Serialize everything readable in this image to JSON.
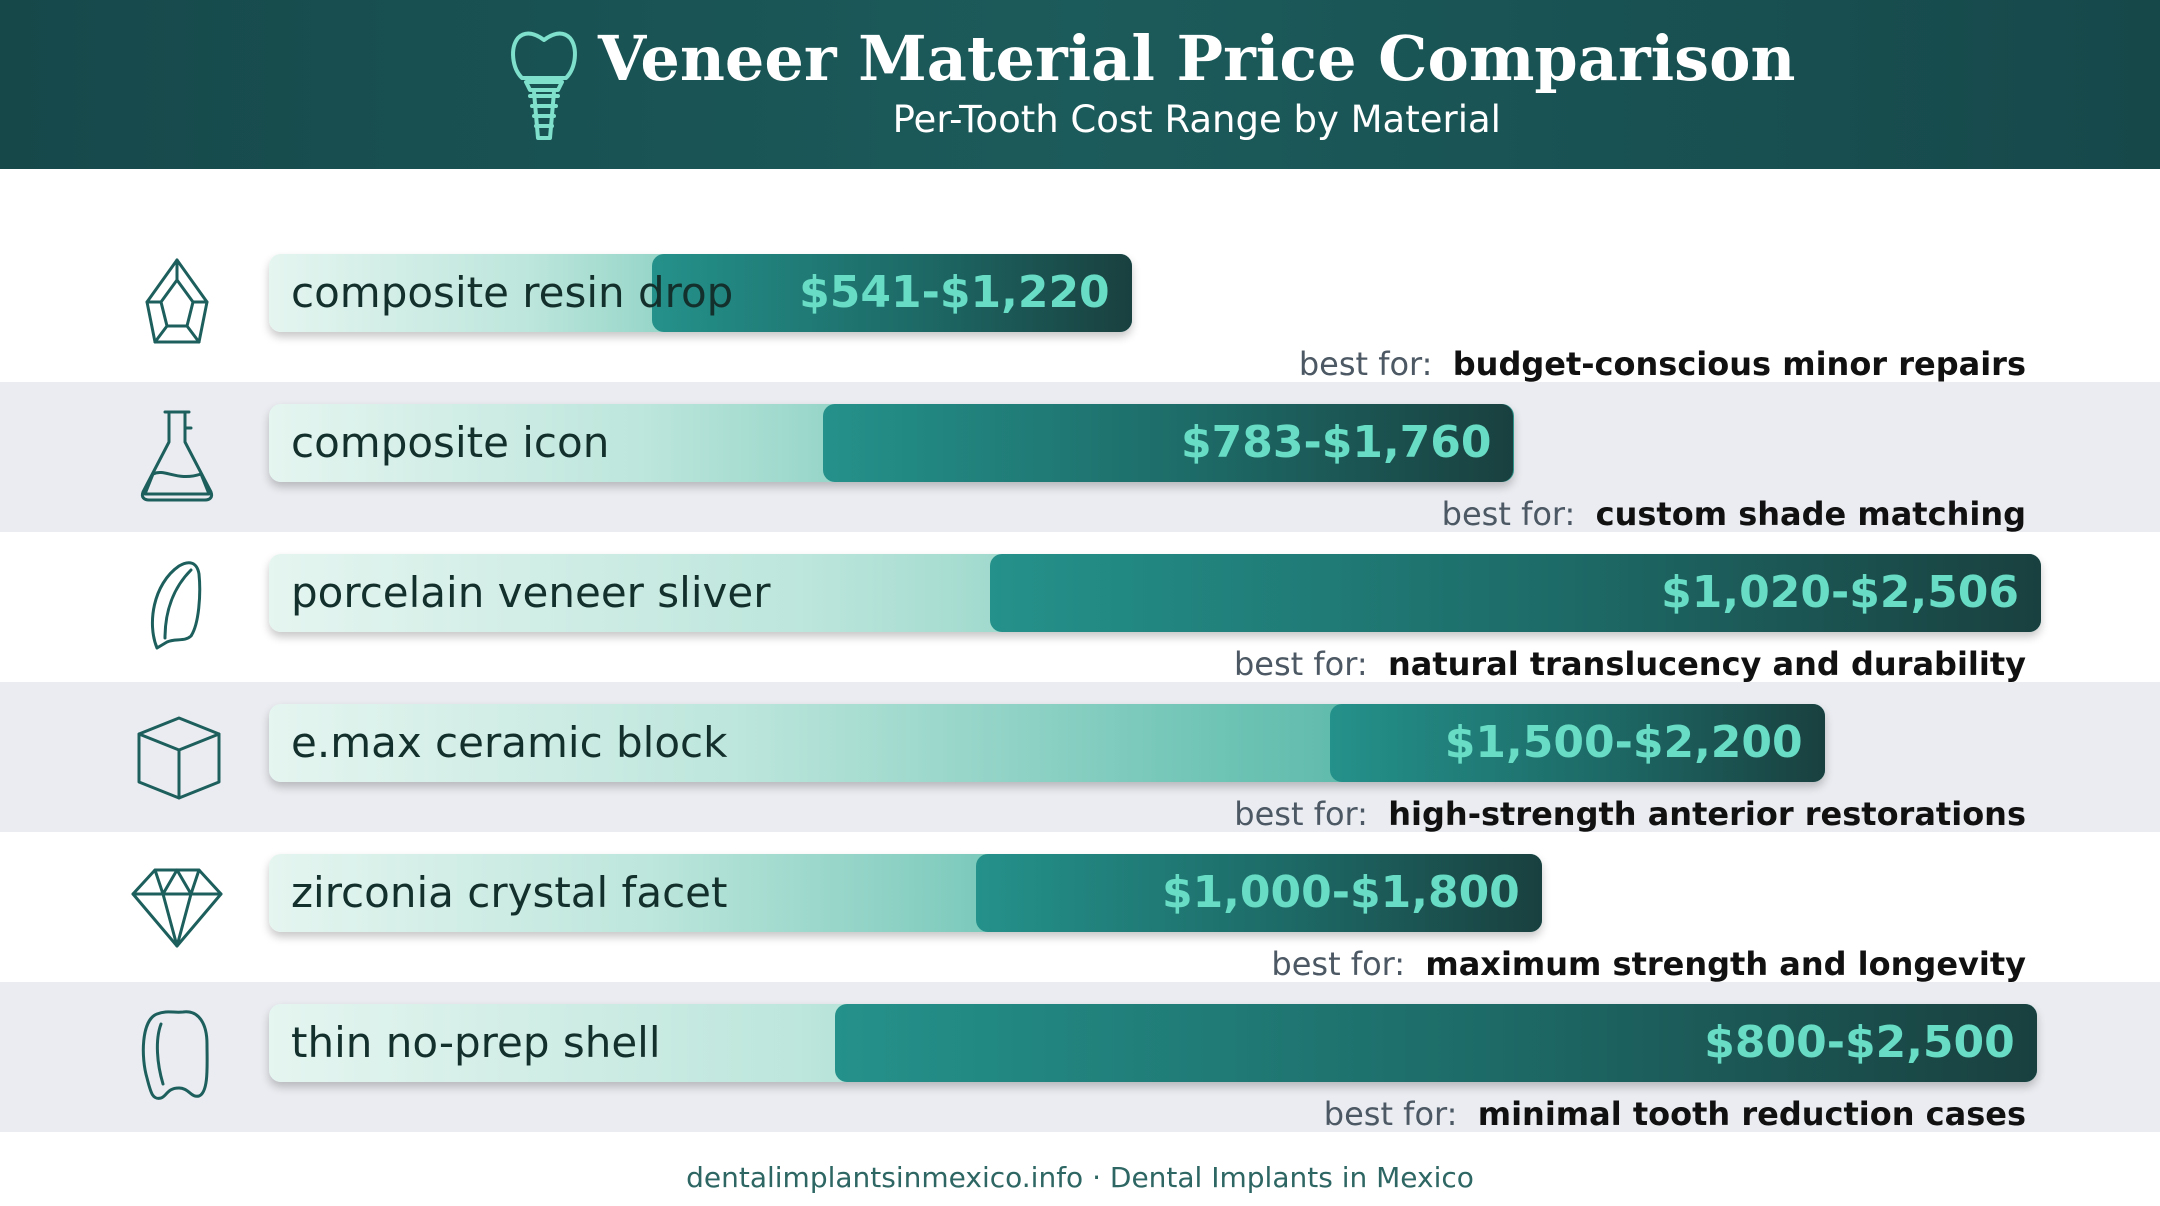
{
  "header": {
    "title": "Veneer Material Price Comparison",
    "subtitle": "Per-Tooth Cost Range by Material",
    "logo_icon": "dental-implant-icon",
    "background": "#1a5353"
  },
  "chart_data": {
    "type": "bar",
    "orientation": "horizontal-range",
    "title": "Veneer Material Price Comparison",
    "subtitle": "Per-Tooth Cost Range by Material",
    "unit": "USD per tooth",
    "xlim": [
      0,
      2506
    ],
    "grid": false,
    "categories": [
      "composite resin drop",
      "composite icon",
      "porcelain veneer sliver",
      "e.max ceramic block",
      "zirconia crystal facet",
      "thin no-prep shell"
    ],
    "series": [
      {
        "values": [
          {
            "low": 541,
            "high": 1220
          },
          {
            "low": 783,
            "high": 1760
          },
          {
            "low": 1020,
            "high": 2506
          },
          {
            "low": 1500,
            "high": 2200
          },
          {
            "low": 1000,
            "high": 1800
          },
          {
            "low": 800,
            "high": 2500
          }
        ]
      }
    ]
  },
  "rows": [
    {
      "label": "composite resin drop",
      "price": "$541-$1,220",
      "best_prefix": "best for:",
      "best": "budget-conscious minor repairs",
      "icon": "gem-drop-icon"
    },
    {
      "label": "composite icon",
      "price": "$783-$1,760",
      "best_prefix": "best for:",
      "best": "custom shade matching",
      "icon": "flask-icon"
    },
    {
      "label": "porcelain veneer sliver",
      "price": "$1,020-$2,506",
      "best_prefix": "best for:",
      "best": "natural translucency and durability",
      "icon": "veneer-sliver-icon"
    },
    {
      "label": "e.max ceramic block",
      "price": "$1,500-$2,200",
      "best_prefix": "best for:",
      "best": "high-strength anterior restorations",
      "icon": "cube-icon"
    },
    {
      "label": "zirconia crystal facet",
      "price": "$1,000-$1,800",
      "best_prefix": "best for:",
      "best": "maximum strength and longevity",
      "icon": "diamond-icon"
    },
    {
      "label": "thin no-prep shell",
      "price": "$800-$2,500",
      "best_prefix": "best for:",
      "best": "minimal tooth reduction cases",
      "icon": "tooth-shell-icon"
    }
  ],
  "colors": {
    "header": "#1a5353",
    "bar_light": "#e5f5f0",
    "bar_dark": "#19403f",
    "price_text": "#68dcc4",
    "row_shade": "#eaecf1"
  },
  "footer": {
    "text": "dentalimplantsinmexico.info · Dental Implants in Mexico"
  }
}
